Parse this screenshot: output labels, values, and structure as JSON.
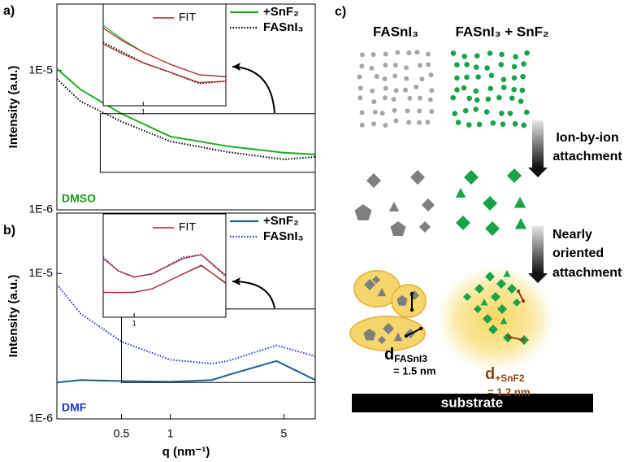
{
  "panels": {
    "a": "a)",
    "b": "b)",
    "c": "c)"
  },
  "chart_data": [
    {
      "type": "line",
      "y_label": "Intensity (a.u.)",
      "annotation": "DMSO",
      "annotation_color": "#1a9a1a",
      "log_x": true,
      "log_y": true,
      "xlim": [
        0.2,
        7.8
      ],
      "ylim": [
        1e-06,
        3e-05
      ],
      "yticks": [
        {
          "value": 1e-05,
          "label": "1E-5"
        },
        {
          "value": 1e-06,
          "label": "1E-6"
        }
      ],
      "x": [
        0.2,
        0.28,
        0.5,
        1,
        2.25,
        5,
        7.8
      ],
      "series": [
        {
          "name": "+SnF₂",
          "color": "#22aa22",
          "style": "solid",
          "values": [
            1.03e-05,
            7.3e-06,
            4.9e-06,
            3.36e-06,
            2.86e-06,
            2.57e-06,
            2.5e-06
          ]
        },
        {
          "name": "FASnI₃",
          "color": "#000000",
          "style": "dotted",
          "values": [
            8.7e-06,
            6e-06,
            4.3e-06,
            3.1e-06,
            2.6e-06,
            2.3e-06,
            2.4e-06
          ]
        }
      ],
      "inset": {
        "legend": "FIT",
        "legend_color": "#b22222",
        "xlim": [
          0.37,
          7.8
        ],
        "ylim": [
          1.86e-06,
          4.9e-06
        ],
        "xticks": [
          1
        ],
        "x": [
          0.37,
          0.6,
          1,
          2,
          4,
          7.8
        ],
        "series": [
          {
            "color": "#22aa22",
            "style": "solid",
            "values": [
              4e-06,
              3.5e-06,
              3.1e-06,
              2.75e-06,
              2.5e-06,
              2.45e-06
            ]
          },
          {
            "color": "#b22222",
            "style": "solid",
            "values": [
              3.9e-06,
              3.45e-06,
              3.1e-06,
              2.75e-06,
              2.5e-06,
              2.45e-06
            ]
          },
          {
            "color": "#000000",
            "style": "dotted",
            "values": [
              3.4e-06,
              3.1e-06,
              2.8e-06,
              2.55e-06,
              2.3e-06,
              2.35e-06
            ]
          },
          {
            "color": "#b22222",
            "style": "solid",
            "values": [
              3.35e-06,
              3.05e-06,
              2.8e-06,
              2.55e-06,
              2.32e-06,
              2.35e-06
            ]
          }
        ]
      }
    },
    {
      "type": "line",
      "y_label": "Intensity (a.u.)",
      "x_label": "q (nm⁻¹)",
      "annotation": "DMF",
      "annotation_color": "#2233cc",
      "log_x": true,
      "log_y": true,
      "xlim": [
        0.2,
        7.8
      ],
      "ylim": [
        1e-06,
        2.6e-05
      ],
      "xticks": [
        0.5,
        1,
        5
      ],
      "yticks": [
        {
          "value": 1e-05,
          "label": "1E-5"
        },
        {
          "value": 1e-06,
          "label": "1E-6"
        }
      ],
      "x": [
        0.2,
        0.28,
        0.5,
        1,
        1.8,
        2.25,
        4.5,
        7.8
      ],
      "series": [
        {
          "name": "+SnF₂",
          "color": "#1f5f99",
          "style": "solid",
          "values": [
            1.78e-06,
            1.85e-06,
            1.82e-06,
            1.8e-06,
            1.85e-06,
            2e-06,
            2.5e-06,
            1.85e-06
          ]
        },
        {
          "name": "FASnI₃",
          "color": "#2233cc",
          "style": "dotted",
          "values": [
            8.4e-06,
            5.3e-06,
            3.4e-06,
            2.55e-06,
            2.4e-06,
            2.5e-06,
            3.2e-06,
            2.7e-06
          ]
        }
      ],
      "inset": {
        "legend": "FIT",
        "legend_color": "#b22222",
        "xlim": [
          0.5,
          7.8
        ],
        "ylim": [
          1.78e-06,
          5.7e-06
        ],
        "xticks": [
          1
        ],
        "x": [
          0.5,
          0.7,
          1,
          1.5,
          3,
          4.5,
          7.8
        ],
        "series": [
          {
            "color": "#1f5f99",
            "style": "solid",
            "values": [
              2.35e-06,
              2.35e-06,
              2.35e-06,
              2.45e-06,
              2.9e-06,
              3.2e-06,
              2.6e-06
            ]
          },
          {
            "color": "#b22222",
            "style": "solid",
            "values": [
              2.36e-06,
              2.35e-06,
              2.36e-06,
              2.45e-06,
              2.9e-06,
              3.18e-06,
              2.62e-06
            ]
          },
          {
            "color": "#2233cc",
            "style": "dotted",
            "values": [
              3.5e-06,
              3e-06,
              2.8e-06,
              2.9e-06,
              3.5e-06,
              3.6e-06,
              2.8e-06
            ]
          },
          {
            "color": "#b22222",
            "style": "solid",
            "values": [
              3.45e-06,
              3e-06,
              2.8e-06,
              2.9e-06,
              3.45e-06,
              3.6e-06,
              2.85e-06
            ]
          }
        ]
      }
    }
  ],
  "diagram": {
    "col1": "FASnI₃",
    "col2": "FASnI₃ + SnF₂",
    "step1": [
      "Ion-by-ion",
      "attachment"
    ],
    "step2": [
      "Nearly",
      "oriented",
      "attachment"
    ],
    "d1": {
      "symbol": "d",
      "subscript": "FASnI3",
      "text": "= 1.5 nm"
    },
    "d2": {
      "symbol": "d",
      "subscript": "+SnF2",
      "text": "= 1.2 nm",
      "color": "#8b4513"
    },
    "substrate": "substrate"
  }
}
